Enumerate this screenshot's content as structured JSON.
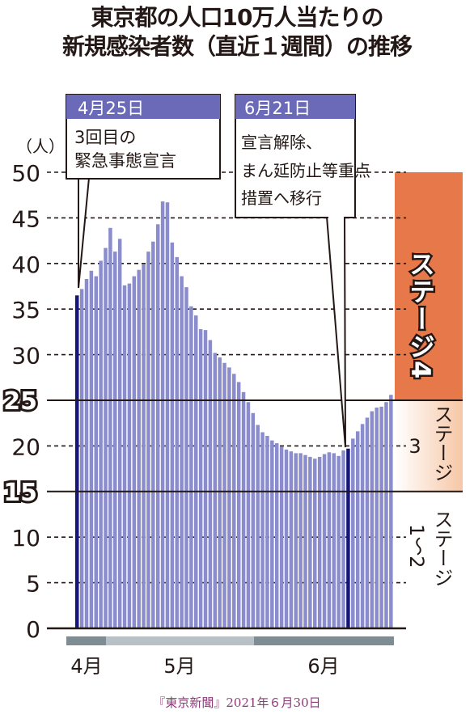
{
  "title_lines": [
    "東京都の人口10万人当たりの",
    "新規感染者数（直近１週間）の推移"
  ],
  "unit_label": "（人）",
  "stage_labels": {
    "stage4": "ステージ4",
    "stage3_text": "ステージ",
    "stage3_num": "3",
    "stage12_text": "ステージ",
    "stage12_num": "1〜2"
  },
  "threshold_labels": [
    "25",
    "15"
  ],
  "annotations": [
    {
      "date": "4月25日",
      "text": [
        "3回目の",
        "緊急事態宣言"
      ]
    },
    {
      "date": "6月21日",
      "text": [
        "宣言解除、",
        "まん延防止等重点",
        "措置へ移行"
      ]
    }
  ],
  "month_labels": [
    "4月",
    "5月",
    "6月"
  ],
  "source": "『東京新聞』2021年６月30日",
  "colors": {
    "bar": "#8a8ccd",
    "bar_highlight": "#16167a",
    "stage4": "#e6784a",
    "stage3_gradient_end": "#f6c7a6",
    "annotation_header": "#6a6ab8",
    "month_band_dark": "#7e8c94",
    "month_band_light": "#b7c1c6"
  },
  "chart_data": {
    "type": "bar",
    "ylabel": "（人）",
    "ylim": [
      0,
      50
    ],
    "yticks": [
      0,
      5,
      10,
      15,
      20,
      25,
      30,
      35,
      40,
      45,
      50
    ],
    "thresholds": [
      15,
      25
    ],
    "x_period": "4月25日〜6月30日（日別）",
    "highlight_indices": [
      0,
      57
    ],
    "values": [
      36.5,
      37.2,
      38.3,
      39.2,
      38.6,
      40.3,
      41.7,
      43.9,
      41.3,
      42.7,
      37.6,
      37.8,
      38.6,
      39.3,
      39.9,
      41.3,
      42.4,
      44.3,
      46.8,
      46.7,
      42.3,
      40.7,
      38.6,
      37.4,
      35.3,
      34.3,
      32.8,
      32.7,
      31.6,
      30.2,
      29.7,
      29.1,
      28.6,
      27.9,
      27.0,
      25.9,
      24.8,
      23.6,
      22.3,
      21.5,
      21.1,
      20.6,
      20.3,
      19.9,
      19.6,
      19.4,
      19.2,
      19.2,
      19.0,
      18.8,
      18.6,
      18.8,
      19.1,
      19.3,
      19.2,
      18.9,
      19.5,
      19.7,
      20.8,
      21.6,
      22.4,
      23.1,
      23.8,
      24.2,
      24.3,
      24.8,
      25.6
    ]
  }
}
